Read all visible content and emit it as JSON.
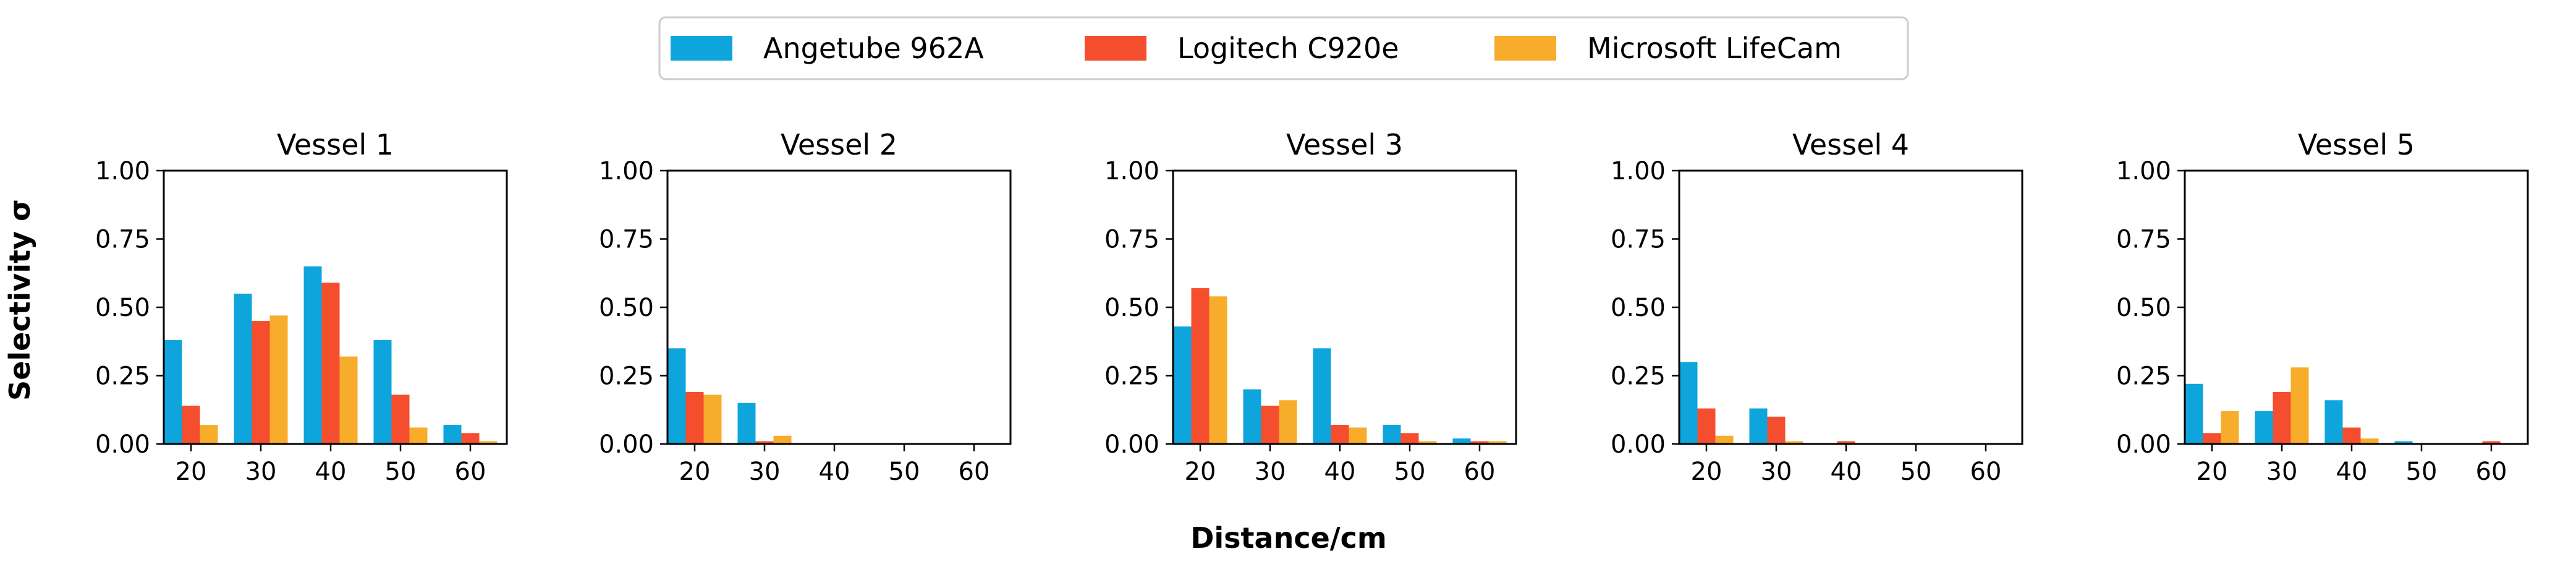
{
  "legend": {
    "entries": [
      {
        "label": "Angetube 962A",
        "color": "#0ea5dc"
      },
      {
        "label": "Logitech C920e",
        "color": "#f54e2e"
      },
      {
        "label": "Microsoft LifeCam",
        "color": "#f7ac2b"
      }
    ],
    "placement": "top-center"
  },
  "axes": {
    "ylabel": "Selectivity σ",
    "xlabel": "Distance/cm"
  },
  "chart_data": [
    {
      "type": "bar",
      "title": "Vessel 1",
      "categories": [
        "20",
        "30",
        "40",
        "50",
        "60"
      ],
      "series": [
        {
          "name": "Angetube 962A",
          "values": [
            0.38,
            0.55,
            0.65,
            0.38,
            0.07
          ]
        },
        {
          "name": "Logitech C920e",
          "values": [
            0.14,
            0.45,
            0.59,
            0.18,
            0.04
          ]
        },
        {
          "name": "Microsoft LifeCam",
          "values": [
            0.07,
            0.47,
            0.32,
            0.06,
            0.01
          ]
        }
      ],
      "ylim": [
        0,
        1
      ],
      "yticks": [
        "0.00",
        "0.25",
        "0.50",
        "0.75",
        "1.00"
      ],
      "grid": false
    },
    {
      "type": "bar",
      "title": "Vessel 2",
      "categories": [
        "20",
        "30",
        "40",
        "50",
        "60"
      ],
      "series": [
        {
          "name": "Angetube 962A",
          "values": [
            0.35,
            0.15,
            0.0,
            0.0,
            0.0
          ]
        },
        {
          "name": "Logitech C920e",
          "values": [
            0.19,
            0.01,
            0.0,
            0.0,
            0.0
          ]
        },
        {
          "name": "Microsoft LifeCam",
          "values": [
            0.18,
            0.03,
            0.0,
            0.0,
            0.0
          ]
        }
      ],
      "ylim": [
        0,
        1
      ],
      "yticks": [
        "0.00",
        "0.25",
        "0.50",
        "0.75",
        "1.00"
      ],
      "grid": false
    },
    {
      "type": "bar",
      "title": "Vessel 3",
      "categories": [
        "20",
        "30",
        "40",
        "50",
        "60"
      ],
      "series": [
        {
          "name": "Angetube 962A",
          "values": [
            0.43,
            0.2,
            0.35,
            0.07,
            0.02
          ]
        },
        {
          "name": "Logitech C920e",
          "values": [
            0.57,
            0.14,
            0.07,
            0.04,
            0.01
          ]
        },
        {
          "name": "Microsoft LifeCam",
          "values": [
            0.54,
            0.16,
            0.06,
            0.01,
            0.01
          ]
        }
      ],
      "ylim": [
        0,
        1
      ],
      "yticks": [
        "0.00",
        "0.25",
        "0.50",
        "0.75",
        "1.00"
      ],
      "grid": false
    },
    {
      "type": "bar",
      "title": "Vessel 4",
      "categories": [
        "20",
        "30",
        "40",
        "50",
        "60"
      ],
      "series": [
        {
          "name": "Angetube 962A",
          "values": [
            0.3,
            0.13,
            0.0,
            0.0,
            0.0
          ]
        },
        {
          "name": "Logitech C920e",
          "values": [
            0.13,
            0.1,
            0.01,
            0.0,
            0.0
          ]
        },
        {
          "name": "Microsoft LifeCam",
          "values": [
            0.03,
            0.01,
            0.0,
            0.0,
            0.0
          ]
        }
      ],
      "ylim": [
        0,
        1
      ],
      "yticks": [
        "0.00",
        "0.25",
        "0.50",
        "0.75",
        "1.00"
      ],
      "grid": false
    },
    {
      "type": "bar",
      "title": "Vessel 5",
      "categories": [
        "20",
        "30",
        "40",
        "50",
        "60"
      ],
      "series": [
        {
          "name": "Angetube 962A",
          "values": [
            0.22,
            0.12,
            0.16,
            0.01,
            0.0
          ]
        },
        {
          "name": "Logitech C920e",
          "values": [
            0.04,
            0.19,
            0.06,
            0.0,
            0.01
          ]
        },
        {
          "name": "Microsoft LifeCam",
          "values": [
            0.12,
            0.28,
            0.02,
            0.0,
            0.0
          ]
        }
      ],
      "ylim": [
        0,
        1
      ],
      "yticks": [
        "0.00",
        "0.25",
        "0.50",
        "0.75",
        "1.00"
      ],
      "grid": false
    }
  ]
}
